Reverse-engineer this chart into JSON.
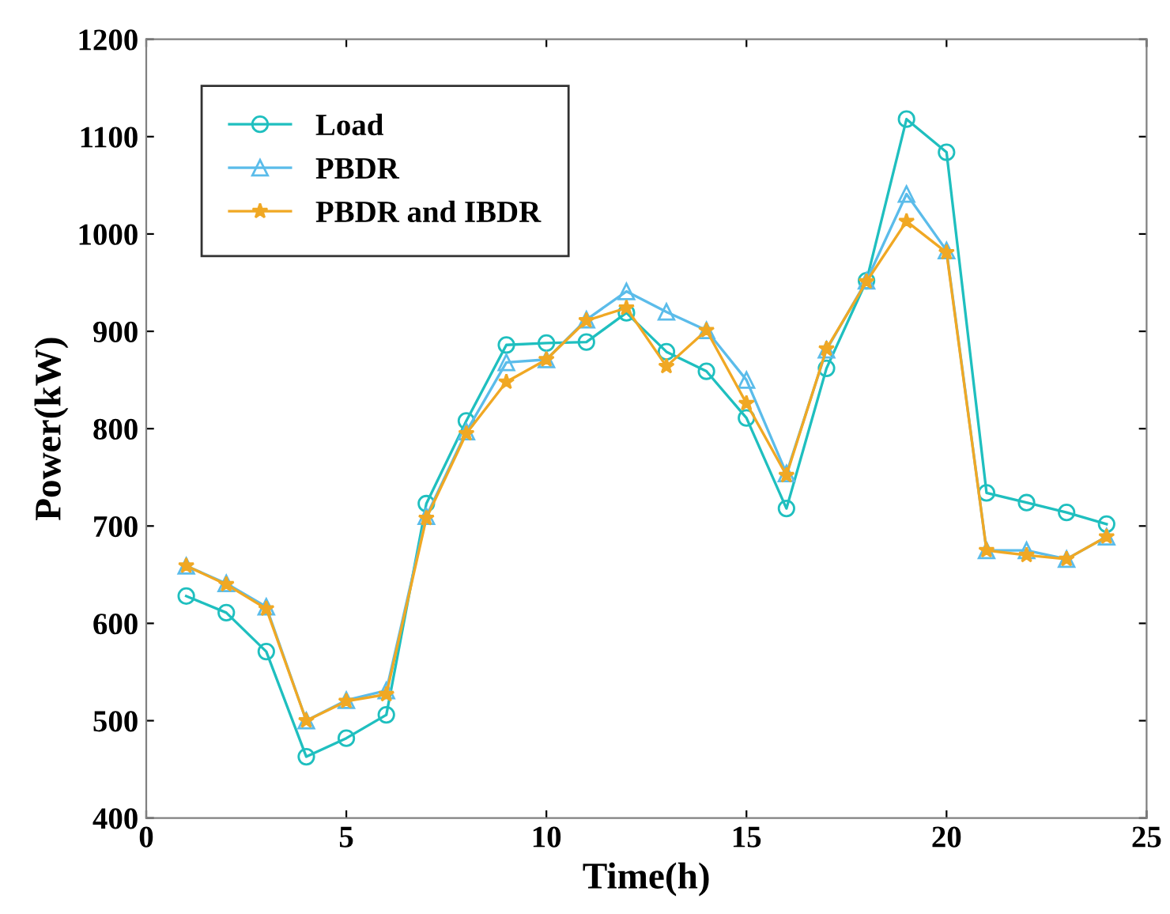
{
  "chart_data": {
    "type": "line",
    "xlabel": "Time(h)",
    "ylabel": "Power(kW)",
    "x": [
      1,
      2,
      3,
      4,
      5,
      6,
      7,
      8,
      9,
      10,
      11,
      12,
      13,
      14,
      15,
      16,
      17,
      18,
      19,
      20,
      21,
      22,
      23,
      24
    ],
    "series": [
      {
        "name": "Load",
        "color": "#1fbfbf",
        "marker": "circle",
        "values": [
          628,
          611,
          571,
          463,
          482,
          506,
          723,
          808,
          886,
          888,
          889,
          919,
          879,
          859,
          811,
          718,
          862,
          952,
          1118,
          1084,
          734,
          724,
          714,
          702
        ]
      },
      {
        "name": "PBDR",
        "color": "#5bbcea",
        "marker": "triangle",
        "values": [
          659,
          641,
          617,
          500,
          521,
          531,
          710,
          797,
          868,
          871,
          912,
          941,
          920,
          901,
          850,
          754,
          881,
          952,
          1041,
          983,
          675,
          675,
          666,
          689
        ]
      },
      {
        "name": "PBDR and IBDR",
        "color": "#f0a824",
        "marker": "star",
        "values": [
          659,
          640,
          615,
          500,
          520,
          527,
          708,
          795,
          848,
          871,
          911,
          924,
          864,
          901,
          826,
          752,
          882,
          951,
          1013,
          981,
          675,
          670,
          666,
          689
        ]
      }
    ],
    "xlim": [
      0,
      25
    ],
    "xticks": [
      0,
      5,
      10,
      15,
      20,
      25
    ],
    "ylim": [
      400,
      1200
    ],
    "yticks": [
      400,
      500,
      600,
      700,
      800,
      900,
      1000,
      1100,
      1200
    ],
    "grid": false,
    "legend": "top left",
    "line_style": "solid"
  }
}
